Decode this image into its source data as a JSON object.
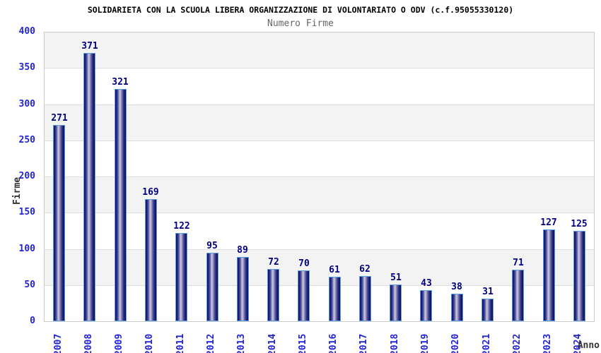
{
  "chart_data": {
    "type": "bar",
    "title": "SOLIDARIETA CON LA SCUOLA LIBERA ORGANIZZAZIONE DI VOLONTARIATO O ODV (c.f.95055330120)",
    "subtitle": "Numero Firme",
    "xlabel": "Anno",
    "ylabel": "Firme",
    "categories": [
      "2007",
      "2008",
      "2009",
      "2010",
      "2011",
      "2012",
      "2013",
      "2014",
      "2015",
      "2016",
      "2017",
      "2018",
      "2019",
      "2020",
      "2021",
      "2022",
      "2023",
      "2024"
    ],
    "values": [
      271,
      371,
      321,
      169,
      122,
      95,
      89,
      72,
      70,
      61,
      62,
      51,
      43,
      38,
      31,
      71,
      127,
      125
    ],
    "ylim": [
      0,
      400
    ],
    "yticks": [
      0,
      50,
      100,
      150,
      200,
      250,
      300,
      350,
      400
    ],
    "grid": "alternating-horizontal-bands",
    "legend": "none",
    "colors": {
      "tick_label": "#2323d6",
      "value_label": "#000080",
      "title": "#000000",
      "subtitle": "#666666",
      "axis_label": "#333333",
      "band_gray": "#f2f3f2",
      "band_white": "#ffffff",
      "gridline": "#dddddd",
      "plot_border": "#cccccc",
      "bar_outline": "#5a9fe0",
      "bar_edge": "#10105e",
      "bar_center": "#c9c9e0"
    }
  }
}
